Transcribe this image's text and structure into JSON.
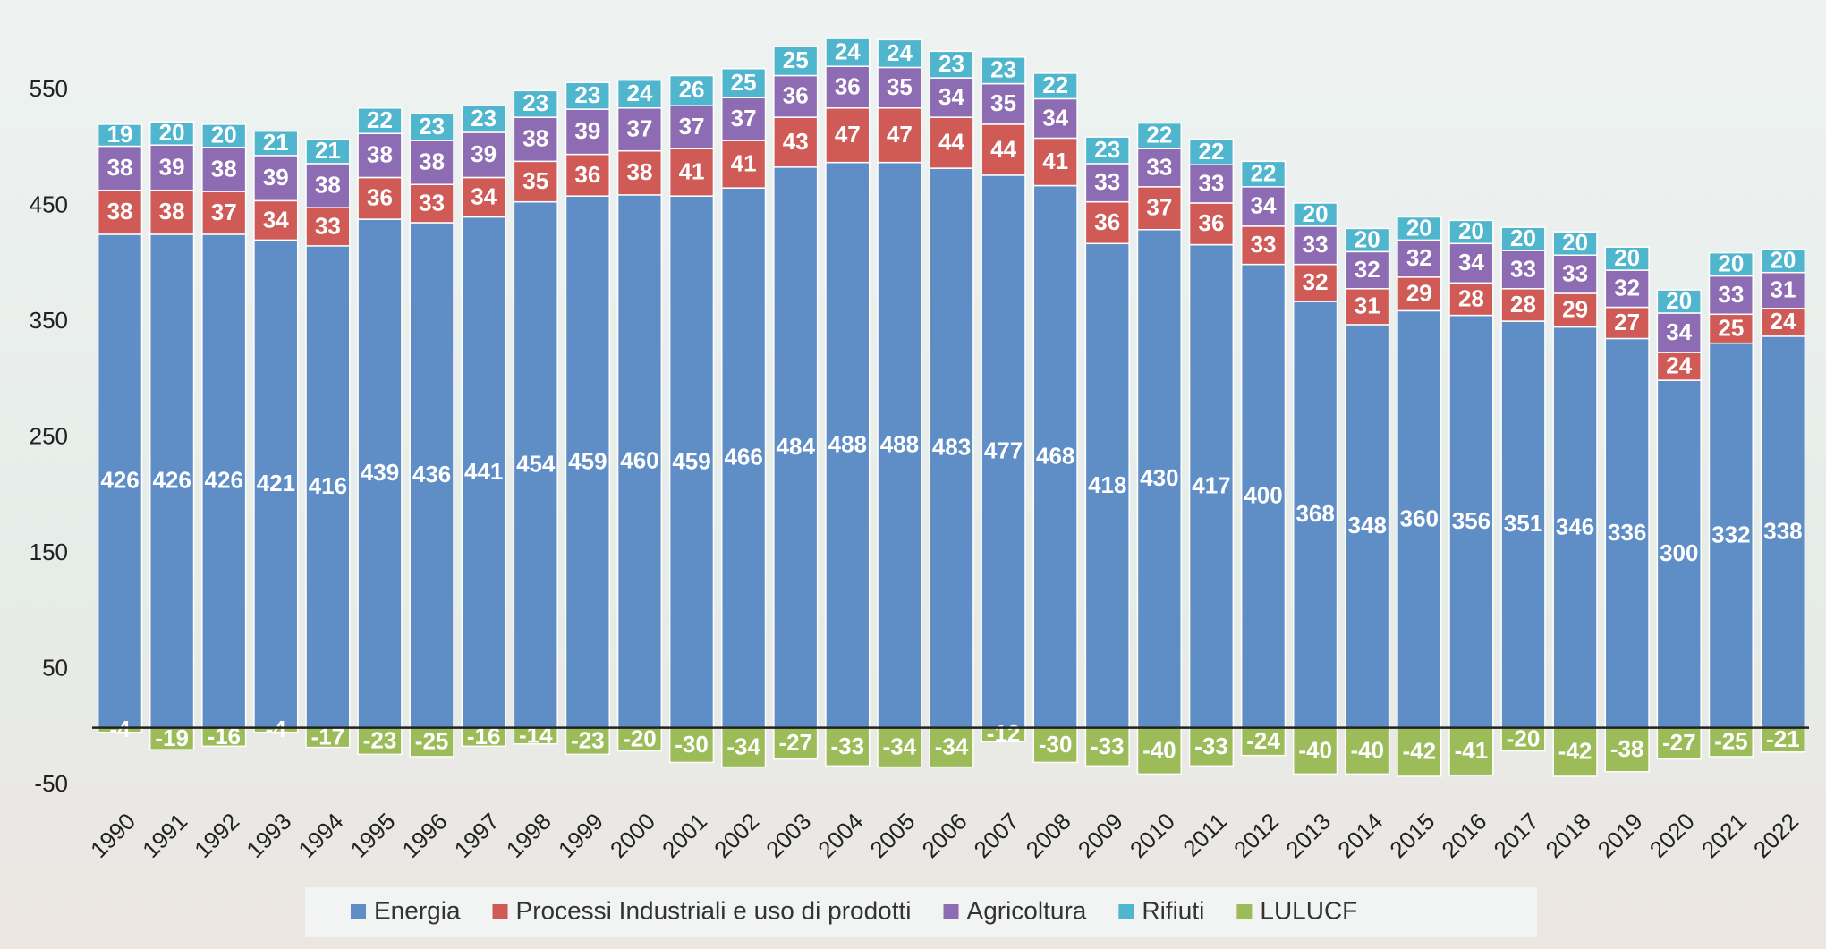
{
  "chart_data": {
    "type": "stacked_bar",
    "categories": [
      "1990",
      "1991",
      "1992",
      "1993",
      "1994",
      "1995",
      "1996",
      "1997",
      "1998",
      "1999",
      "2000",
      "2001",
      "2002",
      "2003",
      "2004",
      "2005",
      "2006",
      "2007",
      "2008",
      "2009",
      "2010",
      "2011",
      "2012",
      "2013",
      "2014",
      "2015",
      "2016",
      "2017",
      "2018",
      "2019",
      "2020",
      "2021",
      "2022"
    ],
    "series": [
      {
        "name": "Energia",
        "color": "#5f8dc6",
        "values": [
          426,
          426,
          426,
          421,
          416,
          439,
          436,
          441,
          454,
          459,
          460,
          459,
          466,
          484,
          488,
          488,
          483,
          477,
          468,
          418,
          430,
          417,
          400,
          368,
          348,
          360,
          356,
          351,
          346,
          336,
          300,
          332,
          338
        ]
      },
      {
        "name": "Processi Industriali e uso di prodotti",
        "color": "#cf5a56",
        "values": [
          38,
          38,
          37,
          34,
          33,
          36,
          33,
          34,
          35,
          36,
          38,
          41,
          41,
          43,
          47,
          47,
          44,
          44,
          41,
          36,
          37,
          36,
          33,
          32,
          31,
          29,
          28,
          28,
          29,
          27,
          24,
          25,
          24
        ]
      },
      {
        "name": "Agricoltura",
        "color": "#8d6cb3",
        "values": [
          38,
          39,
          38,
          39,
          38,
          38,
          38,
          39,
          38,
          39,
          37,
          37,
          37,
          36,
          36,
          35,
          34,
          35,
          34,
          33,
          33,
          33,
          34,
          33,
          32,
          32,
          34,
          33,
          33,
          32,
          34,
          33,
          31
        ]
      },
      {
        "name": "Rifiuti",
        "color": "#4fb6ce",
        "values": [
          19,
          20,
          20,
          21,
          21,
          22,
          23,
          23,
          23,
          23,
          24,
          26,
          25,
          25,
          24,
          24,
          23,
          23,
          22,
          23,
          22,
          22,
          22,
          20,
          20,
          20,
          20,
          20,
          20,
          20,
          20,
          20,
          20
        ]
      },
      {
        "name": "LULUCF",
        "color": "#9cbc5a",
        "values": [
          -4,
          -19,
          -16,
          -4,
          -17,
          -23,
          -25,
          -16,
          -14,
          -23,
          -20,
          -30,
          -34,
          -27,
          -33,
          -34,
          -34,
          -12,
          -30,
          -33,
          -40,
          -33,
          -24,
          -40,
          -40,
          -42,
          -41,
          -20,
          -42,
          -38,
          -27,
          -25,
          -21
        ]
      }
    ],
    "ylim": [
      -75,
      600
    ],
    "yticks": [
      -50,
      50,
      150,
      250,
      350,
      450,
      550
    ],
    "grid": false,
    "legend": "bottom"
  }
}
